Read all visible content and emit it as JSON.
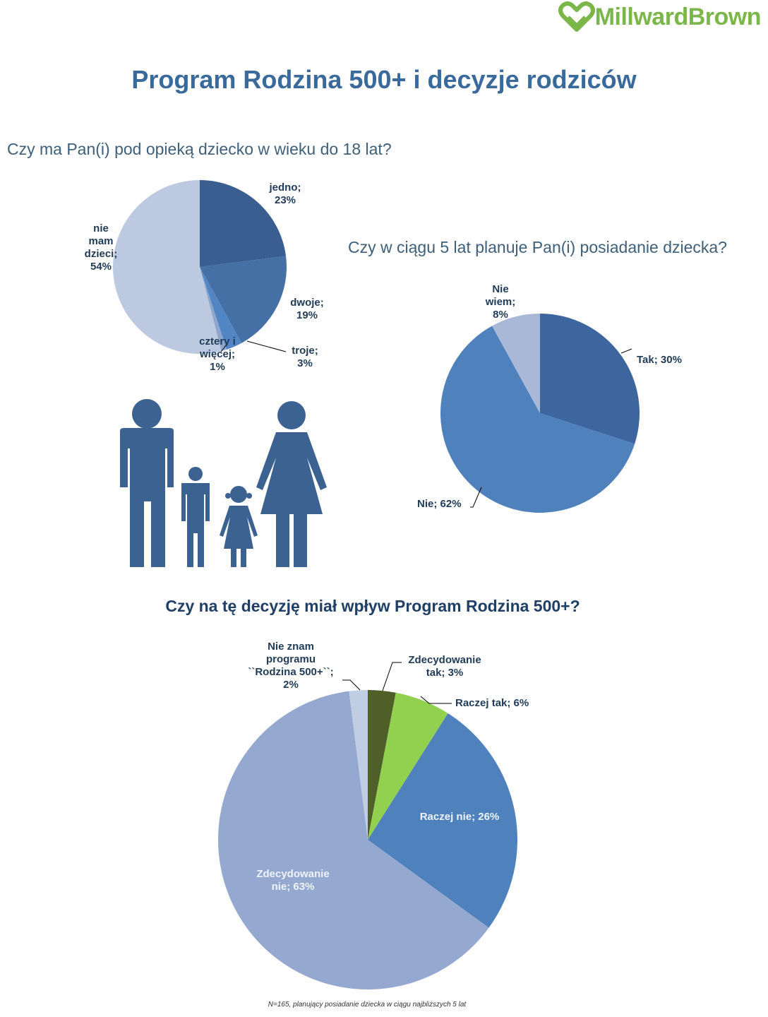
{
  "logo": {
    "text": "MillwardBrown",
    "color": "#7ab648"
  },
  "title": "Program Rodzina 500+ i decyzje rodziców",
  "icons": [
    "millwardbrown-heart-logo",
    "family-icon"
  ],
  "chart_data": [
    {
      "type": "pie",
      "title": "Czy ma Pan(i) pod opieką dziecko w wieku do 18 lat?",
      "slices": [
        {
          "label": [
            "jedno;",
            "23%"
          ],
          "value": 23,
          "color": "#395e8f"
        },
        {
          "label": [
            "dwoje;",
            "19%"
          ],
          "value": 19,
          "color": "#4470a6"
        },
        {
          "label": [
            "troje;",
            "3%"
          ],
          "value": 3,
          "color": "#5285c4"
        },
        {
          "label": [
            "cztery i",
            "więcej;",
            "1%"
          ],
          "value": 1,
          "color": "#8ea6cc"
        },
        {
          "label": [
            "nie",
            "mam",
            "dzieci;",
            "54%"
          ],
          "value": 54,
          "color": "#bcc9e1"
        }
      ]
    },
    {
      "type": "pie",
      "title": "Czy w ciągu 5 lat planuje Pan(i) posiadanie dziecka?",
      "slices": [
        {
          "label": [
            "Tak; 30%"
          ],
          "value": 30,
          "color": "#3c669d"
        },
        {
          "label": [
            "Nie; 62%"
          ],
          "value": 62,
          "color": "#4f81bd"
        },
        {
          "label": [
            "Nie",
            "wiem;",
            "8%"
          ],
          "value": 8,
          "color": "#a9b8d6"
        }
      ]
    },
    {
      "type": "pie",
      "title": "Czy na tę decyzję miał wpływ Program Rodzina 500+?",
      "slices": [
        {
          "label": [
            "Zdecydowanie",
            "tak; 3%"
          ],
          "value": 3,
          "color": "#4e5f28"
        },
        {
          "label": [
            "Raczej tak; 6%"
          ],
          "value": 6,
          "color": "#92d050"
        },
        {
          "label": [
            "Raczej nie; 26%"
          ],
          "value": 26,
          "color": "#4f81bd"
        },
        {
          "label": [
            "Zdecydowanie",
            "nie; 63%"
          ],
          "value": 63,
          "color": "#95a9d0"
        },
        {
          "label": [
            "Nie znam",
            "programu",
            "``Rodzina 500+``;",
            "2%"
          ],
          "value": 2,
          "color": "#c0cde3"
        }
      ]
    }
  ],
  "footnote": "N=165, planujący posiadanie dziecka w ciągu najbliższych 5 lat"
}
